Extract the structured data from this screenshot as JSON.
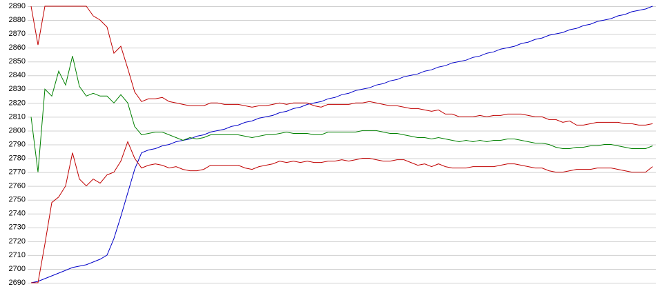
{
  "chart_data": {
    "type": "line",
    "ylim": [
      2690,
      2890
    ],
    "yticks": [
      2690,
      2700,
      2710,
      2720,
      2730,
      2740,
      2750,
      2760,
      2770,
      2780,
      2790,
      2800,
      2810,
      2820,
      2830,
      2840,
      2850,
      2860,
      2870,
      2880,
      2890
    ],
    "grid": true,
    "series": [
      {
        "color": "#0000c8",
        "values": [
          2690,
          2691,
          2693,
          2695,
          2697,
          2699,
          2701,
          2702,
          2703,
          2705,
          2707,
          2710,
          2722,
          2738,
          2755,
          2772,
          2784,
          2786,
          2787,
          2789,
          2790,
          2792,
          2793,
          2794,
          2796,
          2797,
          2799,
          2800,
          2801,
          2803,
          2804,
          2806,
          2807,
          2809,
          2810,
          2811,
          2813,
          2814,
          2816,
          2817,
          2819,
          2820,
          2821,
          2823,
          2824,
          2826,
          2827,
          2829,
          2830,
          2831,
          2833,
          2834,
          2836,
          2837,
          2839,
          2840,
          2841,
          2843,
          2844,
          2846,
          2847,
          2849,
          2850,
          2851,
          2853,
          2854,
          2856,
          2857,
          2859,
          2860,
          2861,
          2863,
          2864,
          2866,
          2867,
          2869,
          2870,
          2871,
          2873,
          2874,
          2876,
          2877,
          2879,
          2880,
          2881,
          2883,
          2884,
          2886,
          2887,
          2888,
          2890
        ]
      },
      {
        "color": "#c00000",
        "values": [
          2890,
          2862,
          2890,
          2890,
          2890,
          2890,
          2890,
          2890,
          2890,
          2883,
          2880,
          2875,
          2856,
          2861,
          2845,
          2828,
          2821,
          2823,
          2823,
          2824,
          2821,
          2820,
          2819,
          2818,
          2818,
          2818,
          2820,
          2820,
          2819,
          2819,
          2819,
          2818,
          2817,
          2818,
          2818,
          2819,
          2820,
          2819,
          2820,
          2820,
          2820,
          2818,
          2817,
          2819,
          2819,
          2819,
          2819,
          2820,
          2820,
          2821,
          2820,
          2819,
          2818,
          2818,
          2817,
          2816,
          2816,
          2815,
          2814,
          2815,
          2812,
          2812,
          2810,
          2810,
          2810,
          2811,
          2810,
          2811,
          2811,
          2812,
          2812,
          2812,
          2811,
          2810,
          2810,
          2808,
          2808,
          2806,
          2807,
          2804,
          2804,
          2805,
          2806,
          2806,
          2806,
          2806,
          2805,
          2805,
          2804,
          2804,
          2805
        ]
      },
      {
        "color": "#008000",
        "values": [
          2810,
          2770,
          2830,
          2825,
          2843,
          2833,
          2854,
          2832,
          2825,
          2827,
          2825,
          2825,
          2820,
          2826,
          2820,
          2803,
          2797,
          2798,
          2799,
          2799,
          2797,
          2795,
          2793,
          2795,
          2794,
          2795,
          2797,
          2797,
          2797,
          2797,
          2797,
          2796,
          2795,
          2796,
          2797,
          2797,
          2798,
          2799,
          2798,
          2798,
          2798,
          2797,
          2797,
          2799,
          2799,
          2799,
          2799,
          2799,
          2800,
          2800,
          2800,
          2799,
          2798,
          2798,
          2797,
          2796,
          2795,
          2795,
          2794,
          2795,
          2794,
          2793,
          2792,
          2793,
          2792,
          2793,
          2792,
          2793,
          2793,
          2794,
          2794,
          2793,
          2792,
          2791,
          2791,
          2790,
          2788,
          2787,
          2787,
          2788,
          2788,
          2789,
          2789,
          2790,
          2790,
          2789,
          2788,
          2787,
          2787,
          2787,
          2789
        ]
      },
      {
        "color": "#c00000",
        "values": [
          2690,
          2690,
          2718,
          2748,
          2752,
          2760,
          2784,
          2765,
          2760,
          2765,
          2762,
          2768,
          2770,
          2778,
          2792,
          2780,
          2773,
          2775,
          2776,
          2775,
          2773,
          2774,
          2772,
          2771,
          2771,
          2772,
          2775,
          2775,
          2775,
          2775,
          2775,
          2773,
          2772,
          2774,
          2775,
          2776,
          2778,
          2777,
          2778,
          2777,
          2778,
          2777,
          2777,
          2778,
          2778,
          2779,
          2778,
          2779,
          2780,
          2780,
          2779,
          2778,
          2778,
          2779,
          2779,
          2777,
          2775,
          2776,
          2774,
          2776,
          2774,
          2773,
          2773,
          2773,
          2774,
          2774,
          2774,
          2774,
          2775,
          2776,
          2776,
          2775,
          2774,
          2773,
          2773,
          2771,
          2770,
          2770,
          2771,
          2772,
          2772,
          2772,
          2773,
          2773,
          2773,
          2772,
          2771,
          2770,
          2770,
          2770,
          2774
        ]
      }
    ]
  }
}
